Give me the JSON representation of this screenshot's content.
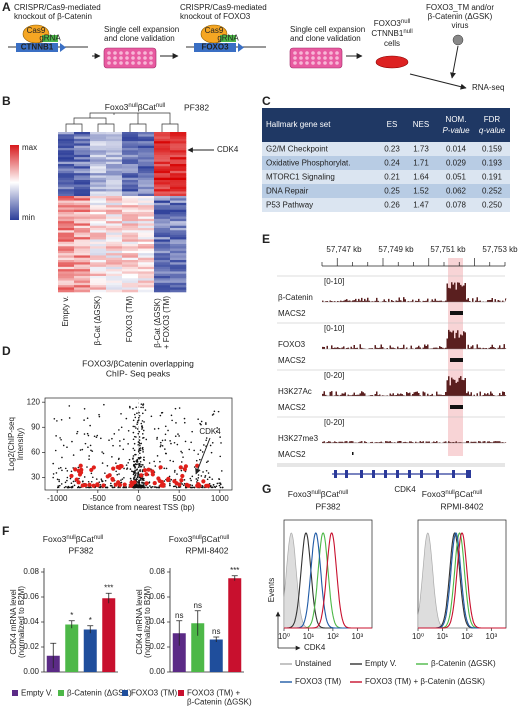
{
  "panel_labels": [
    "A",
    "B",
    "C",
    "D",
    "E",
    "F",
    "G"
  ],
  "workflow": {
    "step1": [
      "CRISPR/Cas9-mediated",
      "knockout of β-Catenin"
    ],
    "step2": [
      "Single cell expansion",
      "and clone validation"
    ],
    "step3": [
      "CRISPR/Cas9-mediated",
      "knockout of FOXO3"
    ],
    "step4": [
      "Single cell expansion",
      "and clone validation"
    ],
    "cells_line1": [
      "FOXO3",
      "null"
    ],
    "cells_line2": [
      "CTNNB1",
      "null"
    ],
    "cells_line3": "cells",
    "virus": [
      "FOXO3_TM and/or",
      "β-Catenin (ΔGSK)",
      "virus"
    ],
    "output": "RNA-seq",
    "cas9": "Cas9",
    "grna": "gRNA",
    "gene1": "CTNNB1",
    "gene2": "FOXO3"
  },
  "heatmap": {
    "title": [
      "Foxo3",
      "null",
      "βCat",
      "null"
    ],
    "subtitle": "PF382",
    "scale_max": "max",
    "scale_min": "min",
    "marker": "CDK4",
    "columns": [
      "Empty v.",
      "β-Cat (ΔGSK)",
      "FOXO3 (TM)",
      "β-Cat (ΔGSK) + FOXO3 (TM)"
    ]
  },
  "table": {
    "header": [
      "Hallmark gene set",
      "ES",
      "NES",
      [
        "NOM.",
        "P-value"
      ],
      [
        "FDR",
        "q-value"
      ]
    ],
    "rows": [
      [
        "G2/M Checkpoint",
        "0.23",
        "1.73",
        "0.014",
        "0.159"
      ],
      [
        "Oxidative Phosphorylat.",
        "0.24",
        "1.71",
        "0.029",
        "0.193"
      ],
      [
        "MTORC1 Signaling",
        "0.21",
        "1.64",
        "0.051",
        "0.191"
      ],
      [
        "DNA Repair",
        "0.25",
        "1.52",
        "0.062",
        "0.252"
      ],
      [
        "P53 Pathway",
        "0.26",
        "1.47",
        "0.078",
        "0.250"
      ]
    ]
  },
  "tracks": {
    "coords": [
      "57,747 kb",
      "57,749 kb",
      "57,751 kb",
      "57,753 kb"
    ],
    "items": [
      {
        "name": "β-Catenin",
        "range": "[0-10]",
        "peaks": "MACS2"
      },
      {
        "name": "FOXO3",
        "range": "[0-10]",
        "peaks": "MACS2"
      },
      {
        "name": "H3K27Ac",
        "range": "[0-20]",
        "peaks": "MACS2"
      },
      {
        "name": "H3K27me3",
        "range": "[0-20]",
        "peaks": "MACS2"
      }
    ],
    "gene": "CDK4"
  },
  "f_legend": [
    {
      "name": "Empty V.",
      "color": "#5b2a86"
    },
    {
      "name": "β-Catenin (ΔGSK)",
      "color": "#4db848"
    },
    {
      "name": "FOXO3 (TM)",
      "color": "#1f4e9c"
    },
    {
      "name": "FOXO3 (TM) + β-Catenin (ΔGSK)",
      "color": "#c8102e"
    }
  ],
  "g_legend": [
    {
      "name": "Unstained",
      "color": "#aaaaaa"
    },
    {
      "name": "Empty V.",
      "color": "#333333"
    },
    {
      "name": "β-Catenin (ΔGSK)",
      "color": "#4db848"
    },
    {
      "name": "FOXO3 (TM)",
      "color": "#1f5aa6"
    },
    {
      "name": "FOXO3 (TM) + β-Catenin (ΔGSK)",
      "color": "#c8102e"
    }
  ],
  "chart_data": [
    {
      "type": "scatter",
      "title": [
        "FOXO3/βCatenin overlapping",
        "ChIP- Seq peaks"
      ],
      "x_label": "Distance from nearest TSS (bp)",
      "y_label": [
        "Log2(ChIP-seq",
        "Intensity)"
      ],
      "annotation": "CDK4",
      "xlim": [
        -1150,
        1150
      ],
      "xticks": [
        -1000,
        -500,
        0,
        500,
        1000
      ],
      "ylim": [
        15,
        125
      ],
      "yticks": [
        30,
        60,
        90,
        120
      ]
    },
    {
      "type": "bar",
      "title": [
        "Foxo3",
        "null",
        "βCat",
        "null"
      ],
      "subtitle": "PF382",
      "y_label": [
        "CDK4 mRNA level",
        "(normalized to B2M)"
      ],
      "values": [
        0.013,
        0.038,
        0.034,
        0.059
      ],
      "errors": [
        0.01,
        0.003,
        0.003,
        0.004
      ],
      "significance": [
        null,
        "*",
        "*",
        "***"
      ],
      "ylim": [
        0,
        0.08
      ],
      "yticks": [
        {
          "value": 0,
          "label": "0.00"
        },
        {
          "value": 0.02,
          "label": "0.02"
        },
        {
          "value": 0.04,
          "label": "0.04"
        },
        {
          "value": 0.06,
          "label": "0.06"
        },
        {
          "value": 0.08,
          "label": "0.08"
        }
      ]
    },
    {
      "type": "bar",
      "title": [
        "Foxo3",
        "null",
        "βCat",
        "null"
      ],
      "subtitle": "RPMI-8402",
      "y_label": [
        "CDK4 mRNA level",
        "(normalized to B2M)"
      ],
      "values": [
        0.031,
        0.039,
        0.026,
        0.075
      ],
      "errors": [
        0.01,
        0.01,
        0.002,
        0.002
      ],
      "significance": [
        "ns",
        "ns",
        "ns",
        "***"
      ],
      "ylim": [
        0,
        0.08
      ],
      "yticks": [
        {
          "value": 0,
          "label": "0.00"
        },
        {
          "value": 0.02,
          "label": "0.02"
        },
        {
          "value": 0.04,
          "label": "0.04"
        },
        {
          "value": 0.06,
          "label": "0.06"
        },
        {
          "value": 0.08,
          "label": "0.08"
        }
      ]
    },
    {
      "type": "density",
      "title": [
        "Foxo3",
        "null",
        "βCat",
        "null"
      ],
      "subtitle": "PF382",
      "x_label": "CDK4",
      "y_label": "Events",
      "xlim": [
        0,
        3.6
      ],
      "xticks": [
        {
          "value": 0,
          "label": "10⁰"
        },
        {
          "value": 1,
          "label": "10¹"
        },
        {
          "value": 2,
          "label": "10²"
        },
        {
          "value": 3,
          "label": "10³"
        }
      ],
      "peaks": [
        0.3,
        0.9,
        1.6,
        1.3,
        1.95
      ]
    },
    {
      "type": "density",
      "title": [
        "Foxo3",
        "null",
        "βCat",
        "null"
      ],
      "subtitle": "RPMI-8402",
      "x_label": "CDK4",
      "y_label": "Events",
      "xlim": [
        0,
        3.6
      ],
      "xticks": [
        {
          "value": 0,
          "label": "10⁰"
        },
        {
          "value": 1,
          "label": "10¹"
        },
        {
          "value": 2,
          "label": "10²"
        },
        {
          "value": 3,
          "label": "10³"
        }
      ],
      "peaks": [
        0.4,
        1.5,
        1.7,
        1.55,
        1.8
      ]
    }
  ]
}
